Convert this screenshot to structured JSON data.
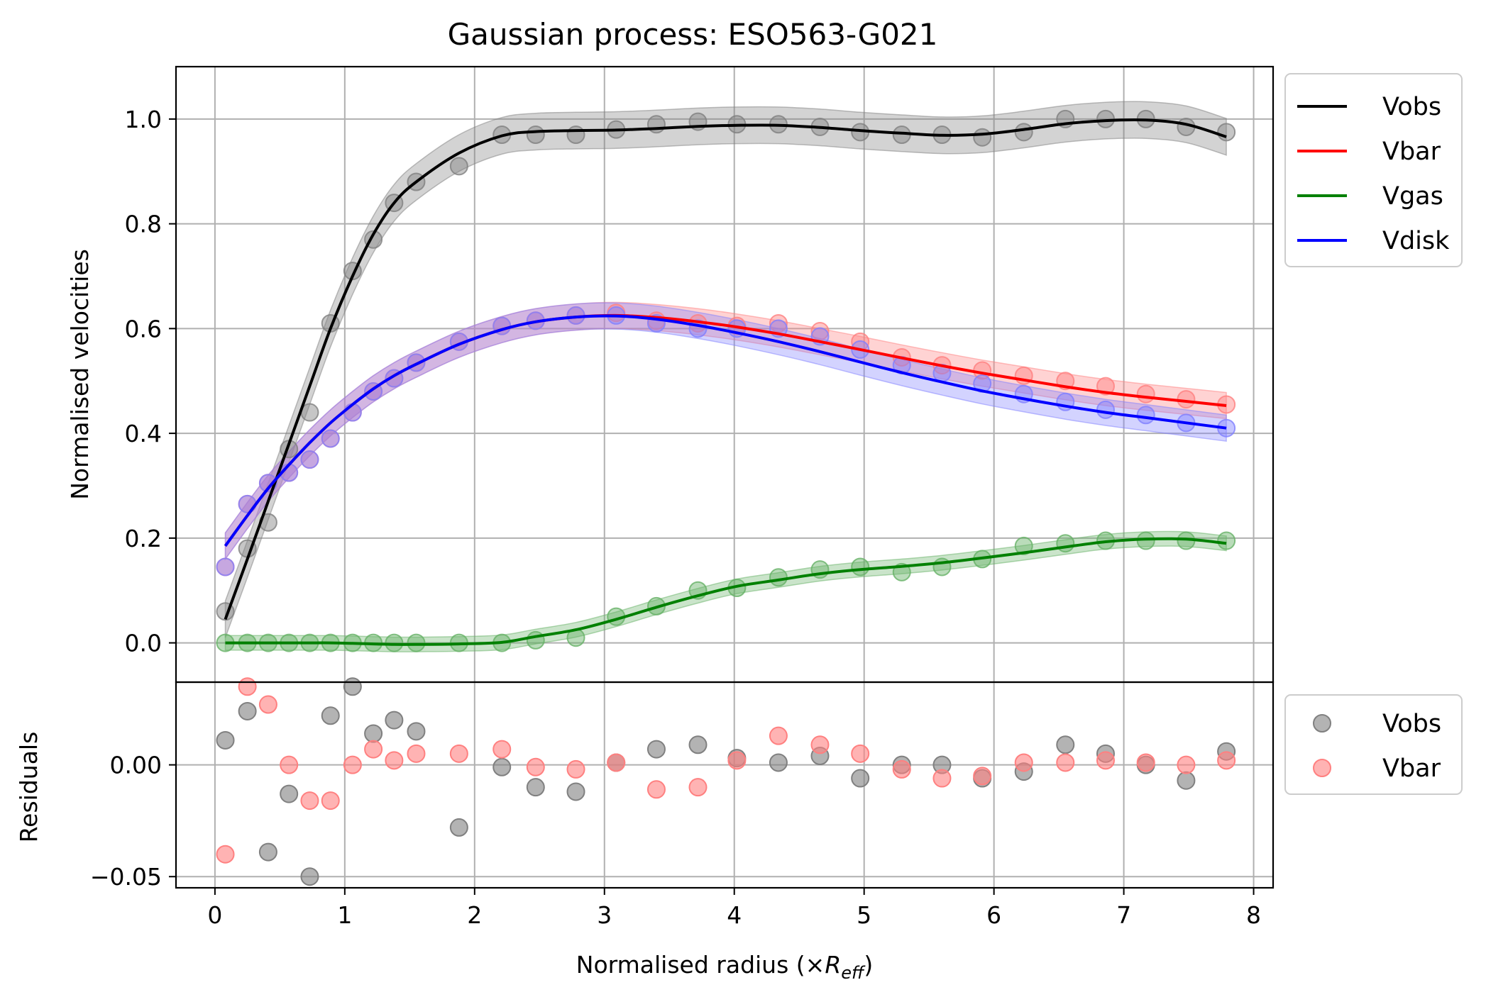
{
  "chart_data": [
    {
      "type": "line",
      "title": "Gaussian process: ESO563-G021",
      "xlabel_prefix": "Normalised radius (×",
      "xlabel_symbol": "R",
      "xlabel_subscript": "eff",
      "xlabel_suffix": ")",
      "ylabel": "Normalised velocities",
      "xlim": [
        -0.3,
        8.15
      ],
      "ylim": [
        -0.075,
        1.1
      ],
      "grid": true,
      "legend_position": "outside-right-top",
      "xticks": [
        0,
        1,
        2,
        3,
        4,
        5,
        6,
        7,
        8
      ],
      "xtick_labels": [
        "0",
        "1",
        "2",
        "3",
        "4",
        "5",
        "6",
        "7",
        "8"
      ],
      "yticks": [
        0.0,
        0.2,
        0.4,
        0.6,
        0.8,
        1.0
      ],
      "ytick_labels": [
        "0.0",
        "0.2",
        "0.4",
        "0.6",
        "0.8",
        "1.0"
      ],
      "x": [
        0.08,
        0.25,
        0.41,
        0.57,
        0.73,
        0.89,
        1.06,
        1.22,
        1.38,
        1.55,
        1.88,
        2.21,
        2.47,
        2.78,
        3.09,
        3.4,
        3.72,
        4.02,
        4.34,
        4.66,
        4.97,
        5.29,
        5.6,
        5.91,
        6.23,
        6.55,
        6.86,
        7.17,
        7.48,
        7.79
      ],
      "series": [
        {
          "name": "Vobs",
          "color": "#000000",
          "band_color": "#808080",
          "points": [
            0.06,
            0.18,
            0.23,
            0.37,
            0.44,
            0.61,
            0.71,
            0.77,
            0.84,
            0.88,
            0.91,
            0.97,
            0.97,
            0.97,
            0.98,
            0.99,
            0.995,
            0.99,
            0.99,
            0.985,
            0.975,
            0.97,
            0.97,
            0.965,
            0.975,
            1.0,
            1.0,
            1.0,
            0.985,
            0.975
          ],
          "fit": [
            0.045,
            0.16,
            0.27,
            0.38,
            0.49,
            0.6,
            0.7,
            0.78,
            0.84,
            0.88,
            0.935,
            0.968,
            0.976,
            0.978,
            0.979,
            0.982,
            0.986,
            0.988,
            0.988,
            0.984,
            0.978,
            0.973,
            0.969,
            0.971,
            0.98,
            0.991,
            0.997,
            0.998,
            0.99,
            0.966
          ],
          "band": 0.035
        },
        {
          "name": "Vbar",
          "color": "#ff0000",
          "band_color": "#ff8080",
          "points": [
            0.145,
            0.265,
            0.305,
            0.325,
            0.35,
            0.39,
            0.44,
            0.48,
            0.505,
            0.535,
            0.575,
            0.605,
            0.615,
            0.625,
            0.63,
            0.615,
            0.61,
            0.605,
            0.61,
            0.595,
            0.575,
            0.545,
            0.53,
            0.52,
            0.51,
            0.5,
            0.49,
            0.475,
            0.465,
            0.455
          ],
          "fit": [
            0.185,
            0.243,
            0.295,
            0.34,
            0.382,
            0.42,
            0.455,
            0.485,
            0.51,
            0.532,
            0.57,
            0.598,
            0.613,
            0.622,
            0.625,
            0.621,
            0.613,
            0.603,
            0.59,
            0.575,
            0.56,
            0.544,
            0.529,
            0.515,
            0.502,
            0.489,
            0.478,
            0.469,
            0.461,
            0.453
          ],
          "band": 0.025
        },
        {
          "name": "Vgas",
          "color": "#008000",
          "band_color": "#66b266",
          "points": [
            0.0,
            0.0,
            0.0,
            0.0,
            0.0,
            0.0,
            0.0,
            0.0,
            0.0,
            0.0,
            0.0,
            0.0,
            0.005,
            0.01,
            0.05,
            0.07,
            0.1,
            0.105,
            0.125,
            0.14,
            0.145,
            0.135,
            0.145,
            0.16,
            0.185,
            0.19,
            0.195,
            0.195,
            0.195,
            0.195
          ],
          "fit": [
            0.0,
            0.0,
            0.0,
            0.0,
            0.0,
            0.0,
            -0.001,
            -0.002,
            -0.003,
            -0.003,
            -0.002,
            0.001,
            0.012,
            0.025,
            0.045,
            0.068,
            0.09,
            0.108,
            0.12,
            0.132,
            0.14,
            0.146,
            0.153,
            0.162,
            0.172,
            0.183,
            0.193,
            0.198,
            0.198,
            0.19
          ],
          "band": 0.014
        },
        {
          "name": "Vdisk",
          "color": "#0000ff",
          "band_color": "#8080ff",
          "points": [
            0.145,
            0.265,
            0.305,
            0.325,
            0.35,
            0.39,
            0.44,
            0.48,
            0.505,
            0.535,
            0.575,
            0.605,
            0.615,
            0.625,
            0.625,
            0.61,
            0.6,
            0.6,
            0.6,
            0.585,
            0.56,
            0.53,
            0.515,
            0.495,
            0.475,
            0.46,
            0.445,
            0.435,
            0.42,
            0.41
          ],
          "fit": [
            0.185,
            0.243,
            0.295,
            0.34,
            0.382,
            0.42,
            0.455,
            0.485,
            0.51,
            0.532,
            0.57,
            0.598,
            0.613,
            0.622,
            0.624,
            0.618,
            0.606,
            0.592,
            0.575,
            0.556,
            0.536,
            0.516,
            0.498,
            0.481,
            0.466,
            0.452,
            0.44,
            0.43,
            0.42,
            0.41
          ],
          "band": 0.025
        }
      ]
    },
    {
      "type": "scatter",
      "ylabel": "Residuals",
      "xlim": [
        -0.3,
        8.15
      ],
      "ylim": [
        -0.055,
        0.037
      ],
      "grid": true,
      "legend_position": "outside-right-top",
      "yticks": [
        0.0,
        -0.05
      ],
      "ytick_labels": [
        "0.00",
        "−0.05"
      ],
      "x": [
        0.08,
        0.25,
        0.41,
        0.57,
        0.73,
        0.89,
        1.06,
        1.22,
        1.38,
        1.55,
        1.88,
        2.21,
        2.47,
        2.78,
        3.09,
        3.4,
        3.72,
        4.02,
        4.34,
        4.66,
        4.97,
        5.29,
        5.6,
        5.91,
        6.23,
        6.55,
        6.86,
        7.17,
        7.48,
        7.79
      ],
      "series": [
        {
          "name": "Vobs",
          "color": "#808080",
          "values": [
            0.011,
            0.024,
            -0.039,
            -0.013,
            -0.05,
            0.022,
            0.035,
            0.014,
            0.02,
            0.015,
            -0.028,
            -0.001,
            -0.01,
            -0.012,
            0.001,
            0.007,
            0.009,
            0.003,
            0.001,
            0.004,
            -0.006,
            0.0,
            0.0,
            -0.006,
            -0.003,
            0.009,
            0.005,
            0.0,
            -0.007,
            0.006
          ]
        },
        {
          "name": "Vbar",
          "color": "#ff8080",
          "values": [
            -0.04,
            0.035,
            0.027,
            0.0,
            -0.016,
            -0.016,
            0.0,
            0.007,
            0.002,
            0.005,
            0.005,
            0.007,
            -0.001,
            -0.002,
            0.001,
            -0.011,
            -0.01,
            0.002,
            0.013,
            0.009,
            0.005,
            -0.002,
            -0.006,
            -0.005,
            0.001,
            0.001,
            0.002,
            0.001,
            0.0,
            0.002
          ]
        }
      ]
    }
  ]
}
